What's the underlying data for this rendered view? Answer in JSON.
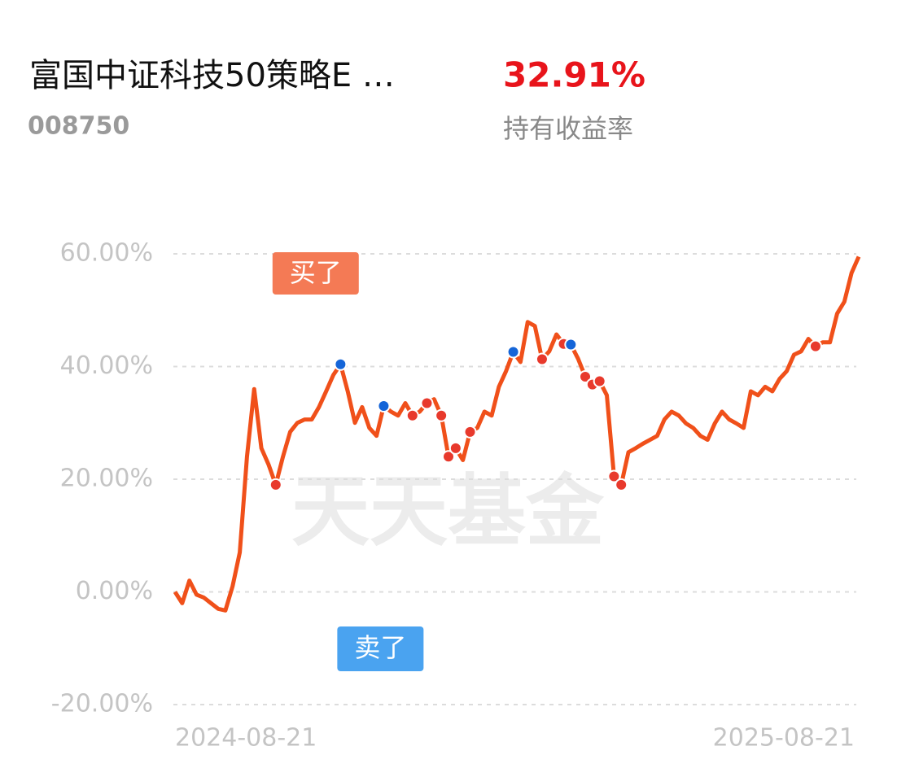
{
  "header": {
    "fund_name": "富国中证科技50策略E …",
    "fund_code": "008750",
    "return_value": "32.91%",
    "return_label": "持有收益率"
  },
  "chart_data": {
    "type": "line",
    "watermark": "天天基金",
    "series": [
      {
        "color": "#f0501a",
        "values": [
          0,
          -2,
          2,
          -0.5,
          -1,
          -2,
          -3,
          -3.3,
          1,
          7,
          24,
          36,
          25.5,
          22.6,
          19,
          24,
          28.4,
          30,
          30.6,
          30.6,
          32.8,
          35.6,
          38.5,
          40.4,
          35.6,
          30,
          32.8,
          29.1,
          27.7,
          33,
          32,
          31.3,
          33.5,
          31.3,
          32,
          33.5,
          34.2,
          31.3,
          24,
          25.5,
          23.4,
          28.4,
          29.1,
          32,
          31.3,
          36.4,
          39.2,
          42.6,
          40.8,
          47.9,
          47.2,
          41.3,
          42.7,
          45.7,
          44,
          43.9,
          41.4,
          38.2,
          36.8,
          37.4,
          34.9,
          20.5,
          19,
          24.8,
          25.5,
          26.3,
          27,
          27.7,
          30.6,
          32,
          31.3,
          29.9,
          29.1,
          27.7,
          27,
          29.9,
          32,
          30.6,
          29.9,
          29.1,
          35.6,
          34.9,
          36.4,
          35.6,
          37.8,
          39.2,
          42.1,
          42.7,
          44.9,
          43.6,
          44.3,
          44.3,
          49.4,
          51.5,
          56.6,
          59.5
        ]
      }
    ],
    "trades": [
      {
        "index": 14,
        "color": "#e8392c"
      },
      {
        "index": 23,
        "color": "#1565d8"
      },
      {
        "index": 29,
        "color": "#1565d8"
      },
      {
        "index": 33,
        "color": "#e8392c"
      },
      {
        "index": 35,
        "color": "#e8392c"
      },
      {
        "index": 37,
        "color": "#e8392c"
      },
      {
        "index": 38,
        "color": "#e8392c"
      },
      {
        "index": 39,
        "color": "#e8392c"
      },
      {
        "index": 41,
        "color": "#e8392c"
      },
      {
        "index": 47,
        "color": "#1565d8"
      },
      {
        "index": 51,
        "color": "#e8392c"
      },
      {
        "index": 54,
        "color": "#e8392c"
      },
      {
        "index": 55,
        "color": "#1565d8"
      },
      {
        "index": 57,
        "color": "#e8392c"
      },
      {
        "index": 58,
        "color": "#e8392c"
      },
      {
        "index": 59,
        "color": "#e8392c"
      },
      {
        "index": 61,
        "color": "#e8392c"
      },
      {
        "index": 62,
        "color": "#e8392c"
      },
      {
        "index": 89,
        "color": "#e8392c"
      }
    ],
    "annotations": [
      {
        "text": "买了",
        "index": 14,
        "color": "#f47a55",
        "position": "top"
      },
      {
        "text": "卖了",
        "index": 23,
        "color": "#4aa3f0",
        "position": "bottom"
      }
    ],
    "ylim": [
      -20,
      60
    ],
    "yticks": [
      {
        "value": 60,
        "label": "60.00%"
      },
      {
        "value": 40,
        "label": "40.00%"
      },
      {
        "value": 20,
        "label": "20.00%"
      },
      {
        "value": 0,
        "label": "0.00%"
      },
      {
        "value": -20,
        "label": "-20.00%"
      }
    ],
    "xticks": [
      {
        "value": 0,
        "label": "2024-08-21"
      },
      {
        "value": 95,
        "label": "2025-08-21"
      }
    ],
    "grid": true
  }
}
